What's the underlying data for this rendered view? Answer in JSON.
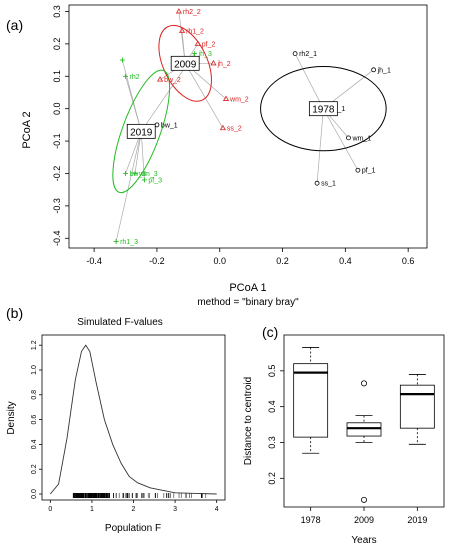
{
  "panels": {
    "a": "(a)",
    "b": "(b)",
    "c": "(c)"
  },
  "chart_data": [
    {
      "type": "scatter",
      "xlabel": "PCoA 1",
      "ylabel": "PCoA 2",
      "subtitle": "method = \"binary bray\"",
      "xlim": [
        -0.48,
        0.66
      ],
      "ylim": [
        -0.43,
        0.32
      ],
      "xticks": [
        -0.4,
        -0.2,
        0.0,
        0.2,
        0.4,
        0.6
      ],
      "yticks": [
        -0.4,
        -0.3,
        -0.2,
        -0.1,
        0.0,
        0.1,
        0.2,
        0.3
      ],
      "colors": {
        "1978": "#000000",
        "2009": "#dd2020",
        "2019": "#22bb22"
      },
      "groups": [
        {
          "name": "1978",
          "marker": "circle",
          "centroid": [
            0.33,
            0.0
          ],
          "ellipse": {
            "rx": 0.2,
            "ry": 0.13
          },
          "points": [
            {
              "label": "rh2_1",
              "x": 0.24,
              "y": 0.17
            },
            {
              "label": "jh_1",
              "x": 0.49,
              "y": 0.12
            },
            {
              "label": "rh1_1",
              "x": 0.33,
              "y": 0.0
            },
            {
              "label": "wm_1",
              "x": 0.41,
              "y": -0.09
            },
            {
              "label": "pf_1",
              "x": 0.44,
              "y": -0.19
            },
            {
              "label": "ss_1",
              "x": 0.31,
              "y": -0.23
            }
          ]
        },
        {
          "name": "2009",
          "marker": "triangle",
          "centroid": [
            -0.11,
            0.14
          ],
          "ellipse": {
            "rx": 0.07,
            "ry": 0.125,
            "angle": -25
          },
          "points": [
            {
              "label": "rh2_2",
              "x": -0.13,
              "y": 0.3
            },
            {
              "label": "rh1_2",
              "x": -0.12,
              "y": 0.24
            },
            {
              "label": "pf_2",
              "x": -0.07,
              "y": 0.2
            },
            {
              "label": "jh_2",
              "x": -0.02,
              "y": 0.14
            },
            {
              "label": "bw_2",
              "x": -0.19,
              "y": 0.09
            },
            {
              "label": "wm_2",
              "x": 0.02,
              "y": 0.03
            },
            {
              "label": "ss_2",
              "x": 0.01,
              "y": -0.06
            }
          ]
        },
        {
          "name": "2019",
          "marker": "plus",
          "centroid": [
            -0.25,
            -0.07
          ],
          "ellipse": {
            "rx": 0.06,
            "ry": 0.2,
            "angle": 20
          },
          "points": [
            {
              "label": "",
              "x": -0.31,
              "y": 0.15
            },
            {
              "label": "rh2",
              "x": -0.3,
              "y": 0.1
            },
            {
              "label": "jh_3",
              "x": -0.08,
              "y": 0.17
            },
            {
              "label": "bw_3",
              "x": -0.3,
              "y": -0.2
            },
            {
              "label": "wm_3",
              "x": -0.27,
              "y": -0.2
            },
            {
              "label": "pf_3",
              "x": -0.24,
              "y": -0.22
            },
            {
              "label": "rh1_3",
              "x": -0.33,
              "y": -0.41
            }
          ]
        }
      ],
      "extra_point": {
        "label": "bw_1",
        "x": -0.2,
        "y": -0.05,
        "group": "1978"
      }
    },
    {
      "type": "line",
      "title": "Simulated F-values",
      "xlabel": "Population F",
      "ylabel": "Density",
      "xlim": [
        -0.2,
        4.2
      ],
      "ylim": [
        0,
        1.25
      ],
      "xticks": [
        0,
        1,
        2,
        3,
        4
      ],
      "yticks": [
        0.0,
        0.2,
        0.4,
        0.6,
        0.8,
        1.0,
        1.2
      ],
      "x": [
        0.0,
        0.2,
        0.4,
        0.6,
        0.75,
        0.85,
        0.95,
        1.1,
        1.3,
        1.5,
        1.7,
        1.9,
        2.1,
        2.4,
        2.7,
        3.0,
        3.5,
        4.0
      ],
      "y": [
        0.0,
        0.08,
        0.45,
        0.92,
        1.15,
        1.2,
        1.15,
        0.9,
        0.6,
        0.4,
        0.25,
        0.14,
        0.09,
        0.05,
        0.03,
        0.01,
        0.005,
        0.0
      ]
    },
    {
      "type": "box",
      "xlabel": "Years",
      "ylabel": "Distance to centroid",
      "categories": [
        "1978",
        "2009",
        "2019"
      ],
      "ylim": [
        0.12,
        0.6
      ],
      "yticks": [
        0.2,
        0.3,
        0.4,
        0.5
      ],
      "boxes": [
        {
          "min": 0.27,
          "q1": 0.315,
          "median": 0.495,
          "q3": 0.52,
          "max": 0.565,
          "outliers": []
        },
        {
          "min": 0.3,
          "q1": 0.318,
          "median": 0.34,
          "q3": 0.355,
          "max": 0.375,
          "outliers": [
            0.465,
            0.14
          ]
        },
        {
          "min": 0.295,
          "q1": 0.34,
          "median": 0.435,
          "q3": 0.46,
          "max": 0.49,
          "outliers": []
        }
      ]
    }
  ]
}
